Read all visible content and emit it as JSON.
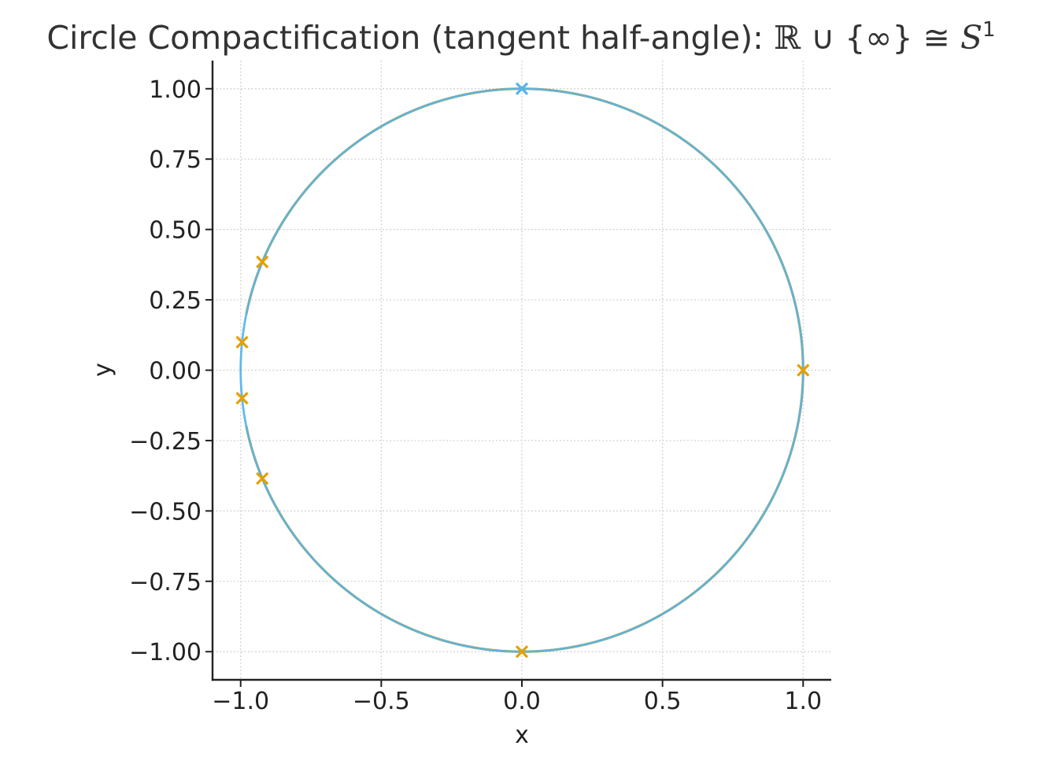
{
  "chart_data": {
    "type": "line",
    "title": "Circle Compactification (tangent half-angle): ℝ ∪ {∞} ≅ S¹",
    "title_parts": {
      "prefix": "Circle Compactification (tangent half-angle): ",
      "reals": "ℝ",
      "union": " ∪ {∞} ≅ ",
      "sphere": "S",
      "sup": "1"
    },
    "xlabel": "x",
    "ylabel": "y",
    "xlim": [
      -1.1,
      1.1
    ],
    "ylim": [
      -1.1,
      1.1
    ],
    "x_ticks": [
      -1.0,
      -0.5,
      0.0,
      0.5,
      1.0
    ],
    "x_tick_labels": [
      "−1.0",
      "−0.5",
      "0.0",
      "0.5",
      "1.0"
    ],
    "y_ticks": [
      1.0,
      0.75,
      0.5,
      0.25,
      0.0,
      -0.25,
      -0.5,
      -0.75,
      -1.0
    ],
    "y_tick_labels": [
      "1.00",
      "0.75",
      "0.50",
      "0.25",
      "0.00",
      "−0.25",
      "−0.50",
      "−0.75",
      "−1.00"
    ],
    "grid": true,
    "aspect": "equal",
    "colors": {
      "orange": "#E69F00",
      "blue": "#56B4E9",
      "axis": "#222222",
      "grid": "#cfcfcf"
    },
    "series": [
      {
        "kind": "curve",
        "color": "#E69F00",
        "description_param": "t in [-10, 10]",
        "t_range": [
          -10,
          10
        ]
      },
      {
        "kind": "circle",
        "color": "#56B4E9",
        "radius": 1.0
      }
    ],
    "markers": [
      {
        "x": -0.9231,
        "y": 0.3846,
        "color": "#E69F00",
        "shape": "x"
      },
      {
        "x": -0.995,
        "y": 0.0995,
        "color": "#E69F00",
        "shape": "x"
      },
      {
        "x": -0.995,
        "y": -0.0995,
        "color": "#E69F00",
        "shape": "x"
      },
      {
        "x": -0.9231,
        "y": -0.3846,
        "color": "#E69F00",
        "shape": "x"
      },
      {
        "x": 1.0,
        "y": 0.0,
        "color": "#E69F00",
        "shape": "x"
      },
      {
        "x": 0.0,
        "y": -1.0,
        "color": "#E69F00",
        "shape": "x"
      },
      {
        "x": 0.0,
        "y": 1.0,
        "color": "#56B4E9",
        "shape": "x"
      }
    ]
  }
}
